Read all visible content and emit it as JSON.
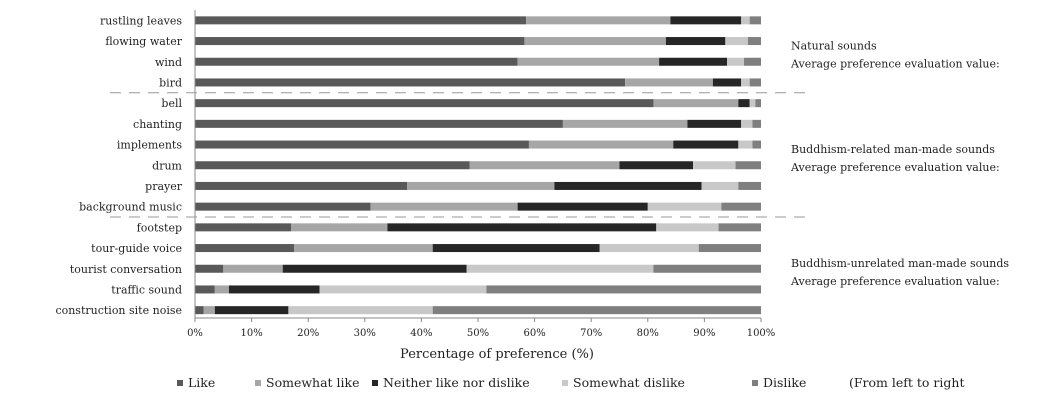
{
  "chart_data": {
    "type": "bar",
    "orientation": "horizontal",
    "stacked": true,
    "xlabel": "Percentage of preference (%)",
    "xlim": [
      0,
      100
    ],
    "xticks": [
      "0%",
      "10%",
      "20%",
      "30%",
      "40%",
      "50%",
      "60%",
      "70%",
      "80%",
      "90%",
      "100%"
    ],
    "grid": false,
    "legend_position": "bottom",
    "legend_note": "(From left to right",
    "categories": [
      "rustling leaves",
      "flowing water",
      "wind",
      "bird",
      "bell",
      "chanting",
      "implements",
      "drum",
      "prayer",
      "background music",
      "footstep",
      "tour-guide voice",
      "tourist conversation",
      "traffic sound",
      "construction site noise"
    ],
    "series": [
      {
        "name": "Like",
        "color": "#595959",
        "values": [
          58.5,
          58.2,
          57.0,
          76.0,
          81.0,
          65.0,
          59.0,
          48.5,
          37.5,
          31.0,
          17.0,
          17.5,
          5.0,
          3.5,
          1.5
        ]
      },
      {
        "name": "Somewhat like",
        "color": "#a6a6a6",
        "values": [
          25.5,
          25.0,
          25.0,
          15.5,
          15.0,
          22.0,
          25.5,
          26.5,
          26.0,
          26.0,
          17.0,
          24.5,
          10.5,
          2.5,
          2.0
        ]
      },
      {
        "name": "Neither like nor dislike",
        "color": "#262626",
        "values": [
          12.5,
          10.5,
          12.0,
          5.0,
          2.0,
          9.5,
          11.5,
          13.0,
          26.0,
          23.0,
          47.5,
          29.5,
          32.5,
          16.0,
          13.0
        ]
      },
      {
        "name": "Somewhat dislike",
        "color": "#c8c8c8",
        "values": [
          1.5,
          4.0,
          3.0,
          1.5,
          1.0,
          2.0,
          2.5,
          7.5,
          6.5,
          13.0,
          11.0,
          17.5,
          33.0,
          29.5,
          25.5
        ]
      },
      {
        "name": "Dislike",
        "color": "#7f7f7f",
        "values": [
          2.0,
          2.3,
          3.0,
          2.0,
          1.0,
          1.5,
          1.5,
          4.5,
          4.0,
          7.0,
          7.5,
          11.0,
          19.0,
          48.5,
          58.0
        ]
      }
    ],
    "groups": [
      {
        "name": "Natural sounds",
        "subtitle": "Average preference evaluation value:",
        "from": 0,
        "to": 3
      },
      {
        "name": "Buddhism-related man-made sounds",
        "subtitle": "Average preference evaluation value:",
        "from": 4,
        "to": 9
      },
      {
        "name": "Buddhism-unrelated man-made sounds",
        "subtitle": "Average preference evaluation value:",
        "from": 10,
        "to": 14
      }
    ]
  }
}
